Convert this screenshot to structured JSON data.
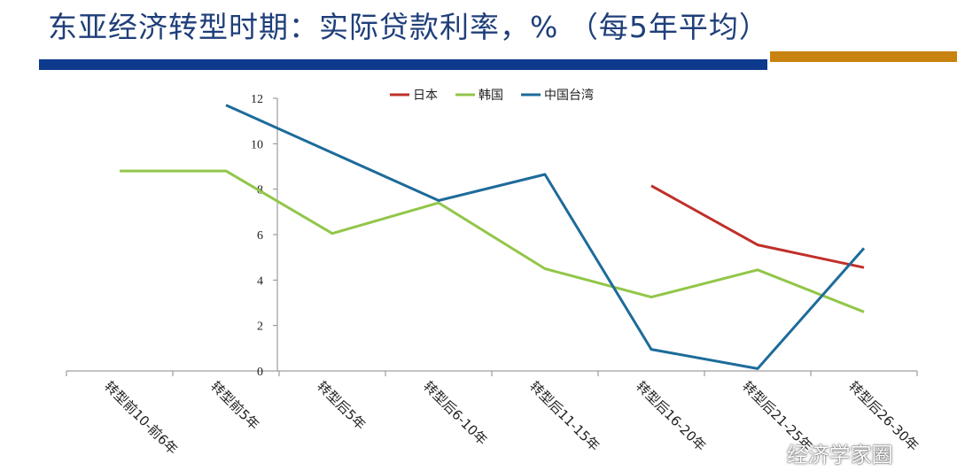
{
  "header": {
    "title": "东亚经济转型时期：实际贷款利率，%  （每5年平均）"
  },
  "brand_colors": {
    "title": "#1f3f7a",
    "bar_blue": "#0d3a8c",
    "bar_orange": "#c8820f"
  },
  "watermark": {
    "text": "经济学家圈",
    "icon": "wechat-icon"
  },
  "chart_data": {
    "type": "line",
    "title": "",
    "xlabel": "",
    "ylabel": "",
    "ylim": [
      0,
      12
    ],
    "yticks": [
      0,
      2,
      4,
      6,
      8,
      10,
      12
    ],
    "grid": false,
    "legend": "top",
    "categories": [
      "转型前10-前6年",
      "转型前5年",
      "转型后5年",
      "转型后6-10年",
      "转型后11-15年",
      "转型后16-20年",
      "转型后21-25年",
      "转型后26-30年"
    ],
    "series": [
      {
        "name": "日本",
        "color": "#c0302a",
        "values": [
          null,
          null,
          null,
          null,
          null,
          8.15,
          5.55,
          4.55
        ]
      },
      {
        "name": "韩国",
        "color": "#92c649",
        "values": [
          8.8,
          8.8,
          6.05,
          7.4,
          4.5,
          3.25,
          4.45,
          2.6
        ]
      },
      {
        "name": "中国台湾",
        "color": "#1d6b9a",
        "values": [
          null,
          11.7,
          9.6,
          7.5,
          8.65,
          0.95,
          0.1,
          5.4
        ]
      }
    ]
  }
}
